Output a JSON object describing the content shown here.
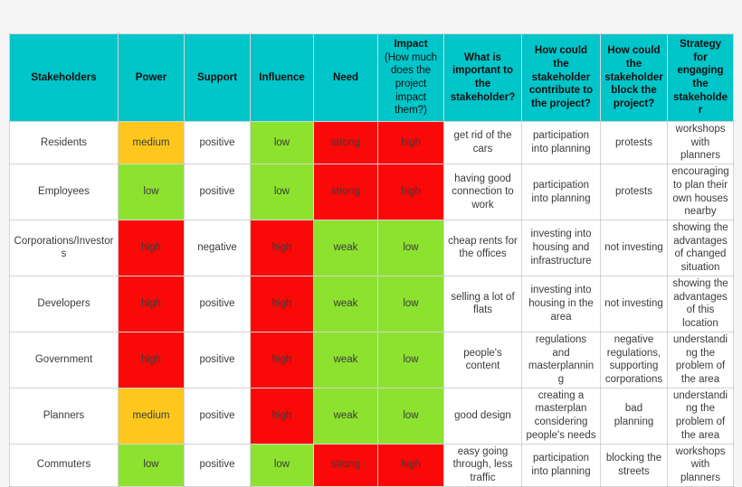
{
  "colors": {
    "header_bg": "#00c5c9",
    "red": "#fb0808",
    "green": "#8de22f",
    "yellow": "#ffc71c",
    "white": "#ffffff",
    "page_bg": "#f5f5f5"
  },
  "table": {
    "columns": [
      {
        "id": "stakeholders",
        "label": "Stakeholders"
      },
      {
        "id": "power",
        "label": "Power"
      },
      {
        "id": "support",
        "label": "Support"
      },
      {
        "id": "influence",
        "label": "Influence"
      },
      {
        "id": "need",
        "label": "Need"
      },
      {
        "id": "impact",
        "label_bold": "Impact",
        "label_note": "(How much does the project impact them?)"
      },
      {
        "id": "important",
        "label": "What is important to the stakeholder?"
      },
      {
        "id": "contribute",
        "label": "How could the stakeholder contribute to the project?"
      },
      {
        "id": "block",
        "label": "How could the stakeholder block the project?"
      },
      {
        "id": "strategy",
        "label": "Strategy for engaging the stakeholder"
      }
    ],
    "rows": [
      {
        "stakeholder": "Residents",
        "cells": [
          {
            "text": "medium",
            "color": "yellow"
          },
          {
            "text": "positive",
            "color": "white"
          },
          {
            "text": "low",
            "color": "green"
          },
          {
            "text": "strong",
            "color": "red"
          },
          {
            "text": "high",
            "color": "red"
          },
          {
            "text": "get rid of the cars",
            "color": "white"
          },
          {
            "text": "participation into planning",
            "color": "white"
          },
          {
            "text": "protests",
            "color": "white"
          },
          {
            "text": "workshops with planners",
            "color": "white"
          }
        ]
      },
      {
        "stakeholder": "Employees",
        "cells": [
          {
            "text": "low",
            "color": "green"
          },
          {
            "text": "positive",
            "color": "white"
          },
          {
            "text": "low",
            "color": "green"
          },
          {
            "text": "strong",
            "color": "red"
          },
          {
            "text": "high",
            "color": "red"
          },
          {
            "text": "having good connection to work",
            "color": "white"
          },
          {
            "text": "participation into planning",
            "color": "white"
          },
          {
            "text": "protests",
            "color": "white"
          },
          {
            "text": "encouraging to plan their own houses nearby",
            "color": "white"
          }
        ]
      },
      {
        "stakeholder": "Corporations/Investors",
        "cells": [
          {
            "text": "high",
            "color": "red"
          },
          {
            "text": "negative",
            "color": "white"
          },
          {
            "text": "high",
            "color": "red"
          },
          {
            "text": "weak",
            "color": "green"
          },
          {
            "text": "low",
            "color": "green"
          },
          {
            "text": "cheap rents for the offices",
            "color": "white"
          },
          {
            "text": "investing into housing and infrastructure",
            "color": "white"
          },
          {
            "text": "not investing",
            "color": "white"
          },
          {
            "text": "showing the advantages of changed situation",
            "color": "white"
          }
        ]
      },
      {
        "stakeholder": "Developers",
        "cells": [
          {
            "text": "high",
            "color": "red"
          },
          {
            "text": "positive",
            "color": "white"
          },
          {
            "text": "high",
            "color": "red"
          },
          {
            "text": "weak",
            "color": "green"
          },
          {
            "text": "low",
            "color": "green"
          },
          {
            "text": "selling a lot of flats",
            "color": "white"
          },
          {
            "text": "investing into housing in the area",
            "color": "white"
          },
          {
            "text": "not investing",
            "color": "white"
          },
          {
            "text": "showing the advantages of this location",
            "color": "white"
          }
        ]
      },
      {
        "stakeholder": "Government",
        "cells": [
          {
            "text": "high",
            "color": "red"
          },
          {
            "text": "positive",
            "color": "white"
          },
          {
            "text": "high",
            "color": "red"
          },
          {
            "text": "weak",
            "color": "green"
          },
          {
            "text": "low",
            "color": "green"
          },
          {
            "text": "people's content",
            "color": "white"
          },
          {
            "text": "regulations and masterplanning",
            "color": "white"
          },
          {
            "text": "negative regulations, supporting corporations",
            "color": "white"
          },
          {
            "text": "understanding the problem of the area",
            "color": "white"
          }
        ]
      },
      {
        "stakeholder": "Planners",
        "cells": [
          {
            "text": "medium",
            "color": "yellow"
          },
          {
            "text": "positive",
            "color": "white"
          },
          {
            "text": "high",
            "color": "red"
          },
          {
            "text": "weak",
            "color": "green"
          },
          {
            "text": "low",
            "color": "green"
          },
          {
            "text": "good design",
            "color": "white"
          },
          {
            "text": "creating a masterplan considering people's needs",
            "color": "white"
          },
          {
            "text": "bad planning",
            "color": "white"
          },
          {
            "text": "understanding the problem of the area",
            "color": "white"
          }
        ]
      },
      {
        "stakeholder": "Commuters",
        "cells": [
          {
            "text": "low",
            "color": "green"
          },
          {
            "text": "positive",
            "color": "white"
          },
          {
            "text": "low",
            "color": "green"
          },
          {
            "text": "strong",
            "color": "red"
          },
          {
            "text": "high",
            "color": "red"
          },
          {
            "text": "easy going through, less traffic",
            "color": "white"
          },
          {
            "text": "participation into planning",
            "color": "white"
          },
          {
            "text": "blocking the streets",
            "color": "white"
          },
          {
            "text": "workshops with planners",
            "color": "white"
          }
        ]
      }
    ]
  }
}
